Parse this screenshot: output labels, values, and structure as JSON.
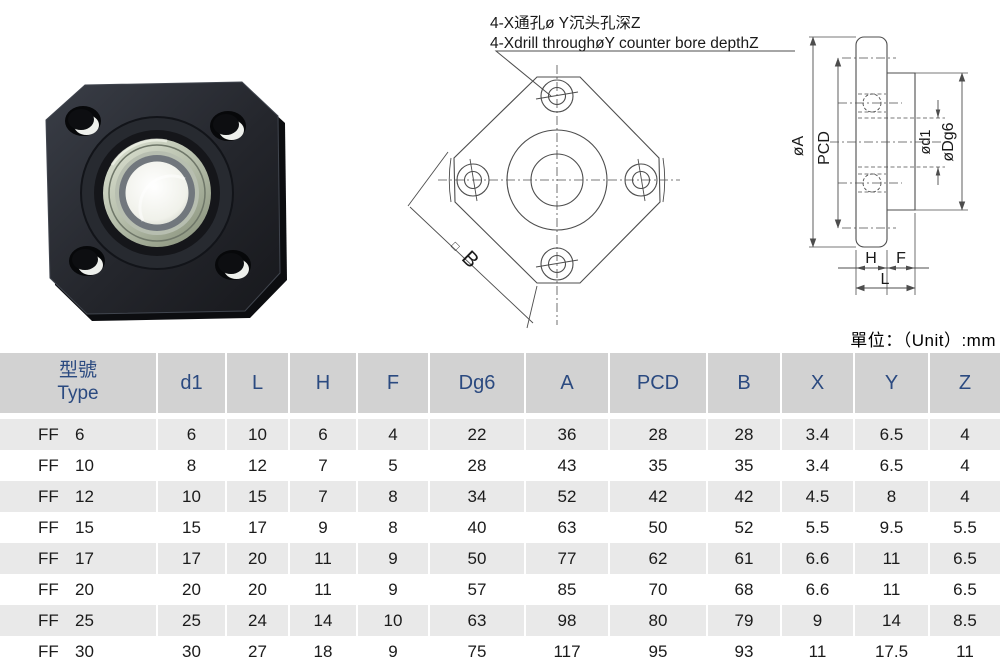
{
  "annotation": {
    "line1_zh": "4-X通孔ø Y沉头孔深Z",
    "line2_en": "4-Xdrill throughøY counter bore depthZ"
  },
  "drawing_labels": {
    "front_view": {
      "square_symbol": "□",
      "side_b": "B"
    },
    "side_view": {
      "dia_a": "øA",
      "pcd": "PCD",
      "dia_d1": "ød1",
      "dia_dg6": "øDg6",
      "h": "H",
      "f": "F",
      "l": "L"
    }
  },
  "table": {
    "unit_label": "單位：（Unit）:mm",
    "type_header": {
      "zh": "型號",
      "en": "Type"
    },
    "value_headers": [
      "d1",
      "L",
      "H",
      "F",
      "Dg6",
      "A",
      "PCD",
      "B",
      "X",
      "Y",
      "Z"
    ],
    "rows": [
      {
        "series": "FF",
        "size": "6",
        "values": [
          "6",
          "10",
          "6",
          "4",
          "22",
          "36",
          "28",
          "28",
          "3.4",
          "6.5",
          "4"
        ]
      },
      {
        "series": "FF",
        "size": "10",
        "values": [
          "8",
          "12",
          "7",
          "5",
          "28",
          "43",
          "35",
          "35",
          "3.4",
          "6.5",
          "4"
        ]
      },
      {
        "series": "FF",
        "size": "12",
        "values": [
          "10",
          "15",
          "7",
          "8",
          "34",
          "52",
          "42",
          "42",
          "4.5",
          "8",
          "4"
        ]
      },
      {
        "series": "FF",
        "size": "15",
        "values": [
          "15",
          "17",
          "9",
          "8",
          "40",
          "63",
          "50",
          "52",
          "5.5",
          "9.5",
          "5.5"
        ]
      },
      {
        "series": "FF",
        "size": "17",
        "values": [
          "17",
          "20",
          "11",
          "9",
          "50",
          "77",
          "62",
          "61",
          "6.6",
          "11",
          "6.5"
        ]
      },
      {
        "series": "FF",
        "size": "20",
        "values": [
          "20",
          "20",
          "11",
          "9",
          "57",
          "85",
          "70",
          "68",
          "6.6",
          "11",
          "6.5"
        ]
      },
      {
        "series": "FF",
        "size": "25",
        "values": [
          "25",
          "24",
          "14",
          "10",
          "63",
          "98",
          "80",
          "79",
          "9",
          "14",
          "8.5"
        ]
      },
      {
        "series": "FF",
        "size": "30",
        "values": [
          "30",
          "27",
          "18",
          "9",
          "75",
          "117",
          "95",
          "93",
          "11",
          "17.5",
          "11"
        ]
      }
    ]
  },
  "colors": {
    "header_bg": "#d2d2d2",
    "header_text": "#2b4a80",
    "row_alt_bg": "#e9e9e9",
    "drawing_stroke": "#4d4d4d"
  }
}
